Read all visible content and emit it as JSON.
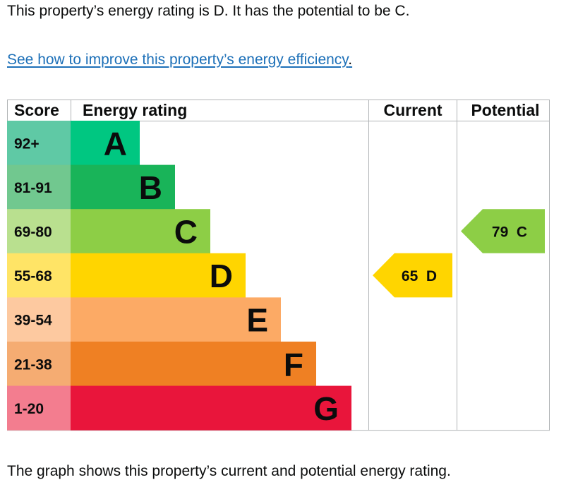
{
  "intro_text": "This property’s energy rating is D. It has the potential to be C.",
  "improve_link": "See how to improve this property’s energy efficiency",
  "improve_link_suffix": ".",
  "caption": "The graph shows this property’s current and potential energy rating.",
  "chart_data": {
    "type": "bar",
    "headers": {
      "score": "Score",
      "rating": "Energy rating",
      "current": "Current",
      "potential": "Potential"
    },
    "bands": [
      {
        "letter": "A",
        "range": "92+",
        "color": "#00c781",
        "score_color": "#5fc9a5"
      },
      {
        "letter": "B",
        "range": "81-91",
        "color": "#19b459",
        "score_color": "#71c88f"
      },
      {
        "letter": "C",
        "range": "69-80",
        "color": "#8dce46",
        "score_color": "#b9e08f"
      },
      {
        "letter": "D",
        "range": "55-68",
        "color": "#ffd500",
        "score_color": "#ffe466"
      },
      {
        "letter": "E",
        "range": "39-54",
        "color": "#fcaa65",
        "score_color": "#fdc9a0"
      },
      {
        "letter": "F",
        "range": "21-38",
        "color": "#ef8023",
        "score_color": "#f5ac72"
      },
      {
        "letter": "G",
        "range": "1-20",
        "color": "#e9153b",
        "score_color": "#f37d8f"
      }
    ],
    "current": {
      "score": 65,
      "band": "D",
      "label": "65  D",
      "color": "#ffd500"
    },
    "potential": {
      "score": 79,
      "band": "C",
      "label": "79  C",
      "color": "#8dce46"
    },
    "grid_color": "#b1b4b6"
  }
}
